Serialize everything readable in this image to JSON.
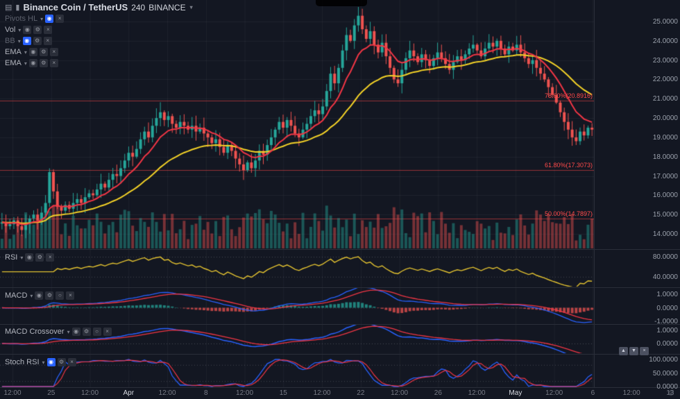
{
  "header": {
    "symbol": "Binance Coin / TetherUS",
    "interval": "240",
    "exchange": "BINANCE"
  },
  "icons": {
    "panel": "▤",
    "candlestick": "▮",
    "caret": "▾",
    "eye": "◉",
    "gear": "⚙",
    "close": "×",
    "more": "○",
    "up": "▲",
    "down": "▼"
  },
  "legend": {
    "items": [
      {
        "label": "Pivots HL"
      },
      {
        "label": "Vol"
      },
      {
        "label": "BB"
      },
      {
        "label": "EMA"
      },
      {
        "label": "EMA"
      }
    ]
  },
  "panes": {
    "rsi": {
      "label": "RSI",
      "axis": [
        "80.0000",
        "40.0000"
      ]
    },
    "macd": {
      "label": "MACD",
      "axis": [
        "1.0000",
        "0.0000",
        "-1.0000"
      ]
    },
    "crossover": {
      "label": "MACD Crossover",
      "axis": [
        "1.0000",
        "0.0000"
      ]
    },
    "stoch": {
      "label": "Stoch RSI",
      "axis": [
        "100.0000",
        "50.0000",
        "0.0000"
      ]
    }
  },
  "price_axis": {
    "labels": [
      "25.0000",
      "24.0000",
      "23.0000",
      "22.0000",
      "21.0000",
      "20.0000",
      "19.0000",
      "18.0000",
      "17.0000",
      "16.0000",
      "15.0000",
      "14.0000"
    ]
  },
  "time_axis": {
    "labels": [
      {
        "text": "12:00"
      },
      {
        "text": "25"
      },
      {
        "text": "12:00"
      },
      {
        "text": "Apr",
        "major": true
      },
      {
        "text": "12:00"
      },
      {
        "text": "8"
      },
      {
        "text": "12:00"
      },
      {
        "text": "15"
      },
      {
        "text": "12:00"
      },
      {
        "text": "22"
      },
      {
        "text": "12:00"
      },
      {
        "text": "26"
      },
      {
        "text": "12:00"
      },
      {
        "text": "May",
        "major": true
      },
      {
        "text": "12:00"
      },
      {
        "text": "6"
      },
      {
        "text": "12:00"
      },
      {
        "text": "13"
      }
    ]
  },
  "fib_levels": [
    {
      "label": "78.60%(20.8916)",
      "value": 20.8916
    },
    {
      "label": "61.80%(17.3073)",
      "value": 17.3073
    },
    {
      "label": "50.00%(14.7897)",
      "value": 14.7897
    }
  ],
  "chart_data": {
    "type": "candlestick",
    "title": "Binance Coin / TetherUS 240 BINANCE",
    "price_axis_range": [
      13.2,
      26.1
    ],
    "closes": [
      14.6,
      14.4,
      14.5,
      14.7,
      14.4,
      14.2,
      14.5,
      14.8,
      15.0,
      14.7,
      15.1,
      15.6,
      17.2,
      16.2,
      15.4,
      15.2,
      15.5,
      15.3,
      15.6,
      15.8,
      15.6,
      15.9,
      16.1,
      16.0,
      16.3,
      16.6,
      16.4,
      16.8,
      17.1,
      17.0,
      17.4,
      17.8,
      18.2,
      18.0,
      18.4,
      18.9,
      19.3,
      19.0,
      19.6,
      20.0,
      20.3,
      19.9,
      20.1,
      19.7,
      19.5,
      19.8,
      19.6,
      19.4,
      19.6,
      19.3,
      19.5,
      19.2,
      19.0,
      18.7,
      18.9,
      18.5,
      18.2,
      18.6,
      18.3,
      17.9,
      17.6,
      17.3,
      17.7,
      17.4,
      17.8,
      18.3,
      18.1,
      18.6,
      19.0,
      19.4,
      19.8,
      19.5,
      19.9,
      19.6,
      19.2,
      19.0,
      19.4,
      19.7,
      20.1,
      20.4,
      20.2,
      20.6,
      21.4,
      22.3,
      21.8,
      22.6,
      23.5,
      24.3,
      24.0,
      24.8,
      25.3,
      24.6,
      24.1,
      24.5,
      23.8,
      23.4,
      23.9,
      23.2,
      22.6,
      22.0,
      21.8,
      22.5,
      23.1,
      23.5,
      23.2,
      22.9,
      23.3,
      23.0,
      22.7,
      23.1,
      23.4,
      23.1,
      22.8,
      22.5,
      22.9,
      23.2,
      23.0,
      23.3,
      23.6,
      23.8,
      23.5,
      23.2,
      23.6,
      23.9,
      23.7,
      24.0,
      23.6,
      23.3,
      23.7,
      23.5,
      23.8,
      23.4,
      23.1,
      22.8,
      23.0,
      22.6,
      22.3,
      22.0,
      21.6,
      21.2,
      20.8,
      20.3,
      19.8,
      19.4,
      19.0,
      18.8,
      19.3,
      19.1,
      19.5,
      19.4
    ],
    "overlays": [
      {
        "name": "EMA fast",
        "period": 10,
        "color": "#f23645"
      },
      {
        "name": "EMA slow",
        "period": 30,
        "color": "#f5d327"
      }
    ],
    "sub_indicators": [
      {
        "name": "RSI",
        "period": 14,
        "levels": [
          80,
          40
        ]
      },
      {
        "name": "MACD",
        "params": [
          12,
          26,
          9
        ],
        "levels": [
          1,
          0,
          -1
        ]
      },
      {
        "name": "MACD Crossover",
        "levels": [
          1,
          0
        ]
      },
      {
        "name": "Stoch RSI",
        "params": [
          14,
          14,
          3,
          3
        ],
        "levels": [
          80,
          20
        ]
      }
    ]
  },
  "colors": {
    "bg": "#131722",
    "grid": "rgba(134,137,147,0.10)",
    "separator": "#2a2e39",
    "up": "#26a69a",
    "down": "#ef5350",
    "vol_up": "rgba(38,166,154,0.45)",
    "vol_down": "rgba(239,83,80,0.45)",
    "ema_fast": "#f23645",
    "ema_slow": "#f5d327",
    "rsi": "#e3c230",
    "macd_line": "#2962ff",
    "signal_line": "#f23645",
    "stoch_k": "#2962ff",
    "stoch_d": "#f23645",
    "fib": "#ff4a4a",
    "dotted": "rgba(134,137,147,0.45)",
    "accent": "#2962ff"
  }
}
